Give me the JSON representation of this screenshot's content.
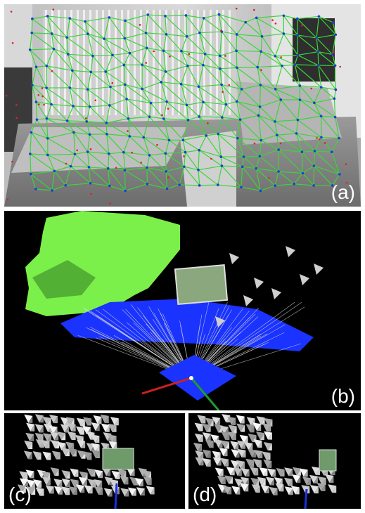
{
  "panels": {
    "a": {
      "label": "(a)"
    },
    "b": {
      "label": "(b)"
    },
    "c": {
      "label": "(c)"
    },
    "d": {
      "label": "(d)"
    }
  },
  "colors": {
    "mesh_green": "#39d63a",
    "vertex_blue": "#1f3bd8",
    "outlier_red": "#e02020",
    "plane_blue": "#1a33ff",
    "map_green": "#7cf04a",
    "axis_red": "#d21f1f",
    "axis_green": "#1c9d2a",
    "axis_blue": "#1b2fe0"
  }
}
